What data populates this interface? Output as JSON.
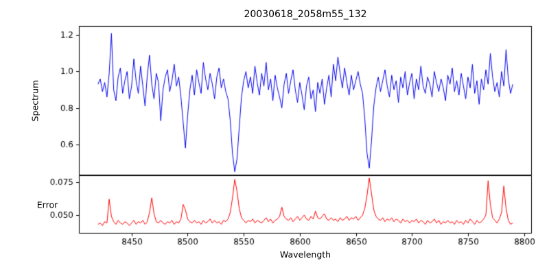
{
  "figure": {
    "title": "20030618_2058m55_132"
  },
  "x_axis": {
    "label": "Wavelength",
    "xlim": [
      8403,
      8807
    ],
    "ticks": [
      8450,
      8500,
      8550,
      8600,
      8650,
      8700,
      8750,
      8800
    ],
    "tick_labels": [
      "8450",
      "8500",
      "8550",
      "8600",
      "8650",
      "8700",
      "8750",
      "8800"
    ]
  },
  "chart_data": [
    {
      "type": "line",
      "title": "20030618_2058m55_132",
      "ylabel": "Spectrum",
      "color": "#0000ee",
      "line_width": 1,
      "grid": false,
      "legend": "none",
      "ylim": [
        0.43,
        1.25
      ],
      "yticks": [
        0.6,
        0.8,
        1.0,
        1.2
      ],
      "ytick_labels": [
        "0.6",
        "0.8",
        "1.0",
        "1.2"
      ],
      "x_start": 8420,
      "x_step": 2,
      "values": [
        0.93,
        0.96,
        0.89,
        0.94,
        0.86,
        0.99,
        1.21,
        0.9,
        0.84,
        0.97,
        1.02,
        0.88,
        0.95,
        1.0,
        0.85,
        0.92,
        1.07,
        0.95,
        0.88,
        1.03,
        0.92,
        0.81,
        0.98,
        1.09,
        0.93,
        0.85,
        0.99,
        0.94,
        0.73,
        0.9,
        0.97,
        1.01,
        0.89,
        0.95,
        1.04,
        0.92,
        0.97,
        0.86,
        0.72,
        0.58,
        0.76,
        0.9,
        0.98,
        0.87,
        1.01,
        0.94,
        0.88,
        1.05,
        0.96,
        0.9,
        0.99,
        0.93,
        0.85,
        0.97,
        1.02,
        0.91,
        0.96,
        0.89,
        0.85,
        0.73,
        0.55,
        0.45,
        0.52,
        0.69,
        0.86,
        0.95,
        1.0,
        0.91,
        0.97,
        0.88,
        1.03,
        0.94,
        0.87,
        0.99,
        0.92,
        1.05,
        0.9,
        0.96,
        0.84,
        0.98,
        0.91,
        0.86,
        0.8,
        0.93,
        0.99,
        0.88,
        0.95,
        1.01,
        0.9,
        0.83,
        0.94,
        0.87,
        0.79,
        0.92,
        0.97,
        0.85,
        0.9,
        0.78,
        0.94,
        0.88,
        0.96,
        0.82,
        0.91,
        0.98,
        0.86,
        1.04,
        0.95,
        1.08,
        0.99,
        0.91,
        1.02,
        0.94,
        0.87,
        0.98,
        0.9,
        0.95,
        1.0,
        0.93,
        0.88,
        0.74,
        0.55,
        0.47,
        0.62,
        0.81,
        0.91,
        0.97,
        0.89,
        0.95,
        1.01,
        0.92,
        0.86,
        0.98,
        0.9,
        0.95,
        0.83,
        0.97,
        0.91,
        1.0,
        0.87,
        0.94,
        0.99,
        0.85,
        0.96,
        0.9,
        1.03,
        0.92,
        0.88,
        0.97,
        0.93,
        0.86,
        1.0,
        0.94,
        0.89,
        0.96,
        0.91,
        0.84,
        0.98,
        0.93,
        1.02,
        0.89,
        0.95,
        0.87,
        0.99,
        0.92,
        0.85,
        0.97,
        0.91,
        1.04,
        0.88,
        0.95,
        0.82,
        0.96,
        0.9,
        1.01,
        0.93,
        1.1,
        0.97,
        0.89,
        0.94,
        0.86,
        1.0,
        0.92,
        1.12,
        0.96,
        0.88,
        0.93
      ]
    },
    {
      "type": "line",
      "ylabel": "Error",
      "color": "#ff0000",
      "line_width": 1,
      "grid": false,
      "legend": "none",
      "ylim": [
        0.036,
        0.08
      ],
      "yticks": [
        0.05,
        0.075
      ],
      "ytick_labels": [
        "0.050",
        "0.075"
      ],
      "x_start": 8420,
      "x_step": 2,
      "values": [
        0.043,
        0.044,
        0.042,
        0.045,
        0.044,
        0.062,
        0.049,
        0.045,
        0.043,
        0.046,
        0.044,
        0.043,
        0.045,
        0.044,
        0.042,
        0.044,
        0.046,
        0.043,
        0.045,
        0.044,
        0.046,
        0.043,
        0.045,
        0.052,
        0.063,
        0.051,
        0.045,
        0.044,
        0.046,
        0.044,
        0.043,
        0.045,
        0.044,
        0.046,
        0.043,
        0.045,
        0.044,
        0.047,
        0.058,
        0.054,
        0.047,
        0.045,
        0.044,
        0.046,
        0.044,
        0.045,
        0.043,
        0.046,
        0.044,
        0.045,
        0.047,
        0.044,
        0.046,
        0.044,
        0.045,
        0.043,
        0.046,
        0.045,
        0.047,
        0.052,
        0.063,
        0.077,
        0.068,
        0.055,
        0.048,
        0.046,
        0.044,
        0.046,
        0.045,
        0.047,
        0.044,
        0.046,
        0.045,
        0.044,
        0.046,
        0.048,
        0.045,
        0.047,
        0.044,
        0.046,
        0.047,
        0.049,
        0.056,
        0.049,
        0.047,
        0.046,
        0.048,
        0.045,
        0.047,
        0.049,
        0.046,
        0.048,
        0.05,
        0.047,
        0.046,
        0.049,
        0.047,
        0.053,
        0.048,
        0.047,
        0.049,
        0.051,
        0.047,
        0.046,
        0.048,
        0.046,
        0.047,
        0.045,
        0.048,
        0.046,
        0.047,
        0.049,
        0.046,
        0.048,
        0.047,
        0.049,
        0.046,
        0.048,
        0.05,
        0.055,
        0.065,
        0.078,
        0.066,
        0.054,
        0.049,
        0.047,
        0.046,
        0.048,
        0.045,
        0.047,
        0.046,
        0.048,
        0.045,
        0.047,
        0.046,
        0.044,
        0.047,
        0.045,
        0.046,
        0.044,
        0.046,
        0.045,
        0.047,
        0.044,
        0.046,
        0.045,
        0.043,
        0.046,
        0.044,
        0.045,
        0.047,
        0.044,
        0.046,
        0.043,
        0.045,
        0.044,
        0.046,
        0.044,
        0.045,
        0.043,
        0.046,
        0.044,
        0.045,
        0.043,
        0.046,
        0.044,
        0.047,
        0.045,
        0.043,
        0.046,
        0.044,
        0.045,
        0.047,
        0.05,
        0.076,
        0.058,
        0.048,
        0.046,
        0.044,
        0.047,
        0.052,
        0.072,
        0.055,
        0.046,
        0.043,
        0.044
      ]
    }
  ]
}
